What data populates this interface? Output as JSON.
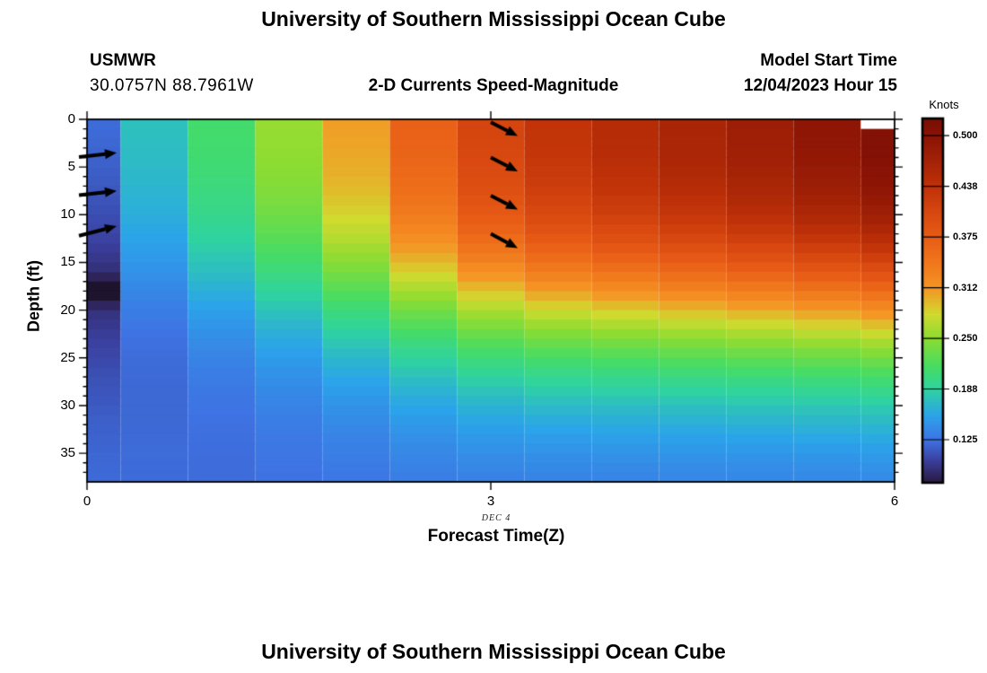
{
  "figure1": {
    "title": "University of Southern Mississippi Ocean Cube",
    "station": {
      "name": "USMWR",
      "coordinates": "30.0757N  88.7961W"
    },
    "subtitle": "2-D Currents Speed-Magnitude",
    "model_start": {
      "label": "Model Start Time",
      "value": "12/04/2023 Hour 15"
    },
    "colorbar": {
      "title": "Knots",
      "ticks": [
        {
          "label": "0.500",
          "value": 0.5
        },
        {
          "label": "0.438",
          "value": 0.4375
        },
        {
          "label": "0.375",
          "value": 0.375
        },
        {
          "label": "0.312",
          "value": 0.3125
        },
        {
          "label": "0.250",
          "value": 0.25
        },
        {
          "label": "0.188",
          "value": 0.1875
        },
        {
          "label": "0.125",
          "value": 0.125
        }
      ]
    },
    "axes": {
      "xlabel": "Forecast Time(Z)",
      "x_sublabel": "DEC 4",
      "ylabel": "Depth (ft)",
      "x_ticks": [
        {
          "label": "0",
          "value": 0
        },
        {
          "label": "3",
          "value": 3
        },
        {
          "label": "6",
          "value": 6
        }
      ],
      "x_range": [
        0,
        6
      ],
      "y_ticks": [
        {
          "label": "0",
          "value": 0
        },
        {
          "label": "5",
          "value": 5
        },
        {
          "label": "10",
          "value": 10
        },
        {
          "label": "15",
          "value": 15
        },
        {
          "label": "20",
          "value": 20
        },
        {
          "label": "25",
          "value": 25
        },
        {
          "label": "30",
          "value": 30
        },
        {
          "label": "35",
          "value": 35
        }
      ],
      "y_range": [
        0,
        38
      ],
      "y_minor_step": 1
    },
    "chart_data": {
      "type": "heatmap",
      "title": "2-D Currents Speed-Magnitude",
      "xlabel": "Forecast Time(Z)",
      "ylabel": "Depth (ft)",
      "value_unit": "Knots",
      "x_hours": [
        0,
        0.5,
        1,
        1.5,
        2,
        2.5,
        3,
        3.5,
        4,
        4.5,
        5,
        5.5,
        6
      ],
      "depths_ft": [
        0,
        2,
        4,
        6,
        8,
        10,
        12,
        14,
        16,
        18,
        20,
        22,
        24,
        26,
        28,
        30,
        32,
        34,
        36,
        38
      ],
      "values_by_time": [
        [
          0.122,
          0.12,
          0.117,
          0.114,
          0.111,
          0.107,
          0.103,
          0.097,
          0.088,
          0.058,
          0.09,
          0.097,
          0.102,
          0.106,
          0.11,
          0.113,
          0.116,
          0.118,
          0.12,
          0.121
        ],
        [
          0.175,
          0.174,
          0.172,
          0.169,
          0.166,
          0.162,
          0.157,
          0.151,
          0.144,
          0.137,
          0.131,
          0.126,
          0.123,
          0.121,
          0.12,
          0.12,
          0.12,
          0.121,
          0.121,
          0.122
        ],
        [
          0.212,
          0.211,
          0.209,
          0.206,
          0.202,
          0.197,
          0.19,
          0.182,
          0.173,
          0.163,
          0.153,
          0.145,
          0.138,
          0.133,
          0.129,
          0.126,
          0.124,
          0.123,
          0.122,
          0.122
        ],
        [
          0.255,
          0.254,
          0.252,
          0.248,
          0.243,
          0.236,
          0.227,
          0.216,
          0.203,
          0.19,
          0.177,
          0.165,
          0.155,
          0.147,
          0.14,
          0.135,
          0.131,
          0.128,
          0.126,
          0.124
        ],
        [
          0.308,
          0.306,
          0.303,
          0.299,
          0.292,
          0.283,
          0.271,
          0.256,
          0.24,
          0.222,
          0.205,
          0.189,
          0.175,
          0.163,
          0.153,
          0.145,
          0.139,
          0.134,
          0.13,
          0.127
        ],
        [
          0.37,
          0.368,
          0.365,
          0.359,
          0.351,
          0.339,
          0.324,
          0.305,
          0.284,
          0.261,
          0.238,
          0.217,
          0.198,
          0.182,
          0.168,
          0.157,
          0.148,
          0.141,
          0.135,
          0.13
        ],
        [
          0.41,
          0.408,
          0.405,
          0.399,
          0.391,
          0.379,
          0.363,
          0.342,
          0.318,
          0.291,
          0.264,
          0.239,
          0.216,
          0.197,
          0.18,
          0.166,
          0.155,
          0.146,
          0.139,
          0.133
        ],
        [
          0.435,
          0.433,
          0.43,
          0.424,
          0.415,
          0.403,
          0.385,
          0.363,
          0.337,
          0.308,
          0.279,
          0.251,
          0.226,
          0.204,
          0.186,
          0.171,
          0.158,
          0.148,
          0.14,
          0.134
        ],
        [
          0.45,
          0.448,
          0.445,
          0.439,
          0.43,
          0.417,
          0.399,
          0.376,
          0.349,
          0.318,
          0.287,
          0.258,
          0.231,
          0.208,
          0.189,
          0.173,
          0.16,
          0.15,
          0.141,
          0.135
        ],
        [
          0.465,
          0.463,
          0.46,
          0.454,
          0.444,
          0.431,
          0.412,
          0.388,
          0.36,
          0.328,
          0.295,
          0.264,
          0.236,
          0.212,
          0.192,
          0.175,
          0.162,
          0.151,
          0.142,
          0.136
        ],
        [
          0.478,
          0.476,
          0.473,
          0.467,
          0.457,
          0.443,
          0.424,
          0.399,
          0.369,
          0.336,
          0.302,
          0.27,
          0.241,
          0.216,
          0.195,
          0.178,
          0.164,
          0.152,
          0.143,
          0.137
        ],
        [
          0.495,
          0.493,
          0.49,
          0.483,
          0.473,
          0.459,
          0.438,
          0.412,
          0.381,
          0.346,
          0.31,
          0.277,
          0.246,
          0.22,
          0.198,
          0.18,
          0.166,
          0.154,
          0.144,
          0.138
        ],
        [
          null,
          0.51,
          0.507,
          0.5,
          0.49,
          0.475,
          0.453,
          0.426,
          0.394,
          0.357,
          0.32,
          0.285,
          0.253,
          0.225,
          0.202,
          0.183,
          0.168,
          0.156,
          0.146,
          0.139
        ]
      ],
      "missing_cells": [
        {
          "t": 6.0,
          "depth_ft": 0
        }
      ],
      "scale": {
        "vmin": 0.073,
        "vmax": 0.52
      },
      "colormap_stops": [
        [
          0.055,
          "#0a0a12"
        ],
        [
          0.073,
          "#2a1a40"
        ],
        [
          0.1,
          "#3a3f9e"
        ],
        [
          0.125,
          "#3e73e3"
        ],
        [
          0.155,
          "#2ba3ea"
        ],
        [
          0.188,
          "#2fd3a0"
        ],
        [
          0.215,
          "#46dc64"
        ],
        [
          0.25,
          "#8bdc32"
        ],
        [
          0.28,
          "#d0da2f"
        ],
        [
          0.312,
          "#f59525"
        ],
        [
          0.345,
          "#f0761c"
        ],
        [
          0.375,
          "#e85c16"
        ],
        [
          0.405,
          "#d84810"
        ],
        [
          0.438,
          "#bf3108"
        ],
        [
          0.47,
          "#a32206"
        ],
        [
          0.5,
          "#8a1305"
        ],
        [
          0.53,
          "#740c04"
        ]
      ],
      "arrows": [
        {
          "from_t": -0.06,
          "from_d": 3.95,
          "to_t": 0.22,
          "to_d": 3.5
        },
        {
          "from_t": -0.06,
          "from_d": 7.95,
          "to_t": 0.22,
          "to_d": 7.5
        },
        {
          "from_t": -0.06,
          "from_d": 12.2,
          "to_t": 0.22,
          "to_d": 11.2
        },
        {
          "from_t": 3.0,
          "from_d": 0.3,
          "to_t": 3.2,
          "to_d": 1.75
        },
        {
          "from_t": 3.0,
          "from_d": 4.0,
          "to_t": 3.2,
          "to_d": 5.45
        },
        {
          "from_t": 3.0,
          "from_d": 8.0,
          "to_t": 3.2,
          "to_d": 9.45
        },
        {
          "from_t": 3.0,
          "from_d": 12.0,
          "to_t": 3.2,
          "to_d": 13.5
        }
      ],
      "arrow_color": "#000000"
    }
  },
  "figure2": {
    "title": "University of Southern Mississippi Ocean Cube"
  }
}
